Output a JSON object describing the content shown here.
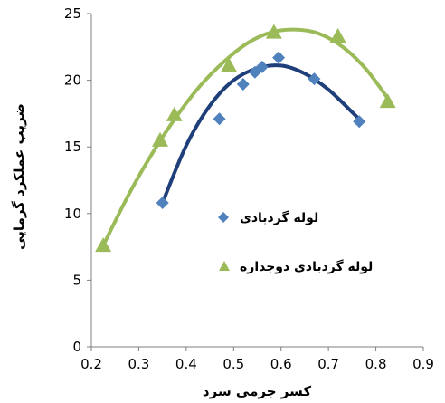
{
  "chart_data": {
    "type": "scatter",
    "xlabel": "کسر جرمی سرد",
    "ylabel": "ضریب عملکرد گرمایی",
    "xlim": [
      0.2,
      0.9
    ],
    "ylim": [
      0,
      25
    ],
    "x_ticks": [
      "0.2",
      "0.3",
      "0.4",
      "0.5",
      "0.6",
      "0.7",
      "0.8",
      "0.9"
    ],
    "y_ticks": [
      "0",
      "5",
      "10",
      "15",
      "20",
      "25"
    ],
    "grid": false,
    "legend_position": "center-right",
    "series": [
      {
        "name": "لوله گردبادی",
        "marker": "diamond",
        "color": "#4f81bd",
        "trend_color": "#1f3f7a",
        "points": [
          [
            0.35,
            10.8
          ],
          [
            0.47,
            17.1
          ],
          [
            0.52,
            19.7
          ],
          [
            0.545,
            20.6
          ],
          [
            0.56,
            21.0
          ],
          [
            0.595,
            21.7
          ],
          [
            0.67,
            20.1
          ],
          [
            0.765,
            16.9
          ]
        ],
        "trend": [
          [
            0.35,
            10.8
          ],
          [
            0.4,
            15.1
          ],
          [
            0.45,
            18.1
          ],
          [
            0.5,
            20.0
          ],
          [
            0.55,
            20.9
          ],
          [
            0.6,
            21.1
          ],
          [
            0.65,
            20.5
          ],
          [
            0.7,
            19.3
          ],
          [
            0.75,
            17.6
          ],
          [
            0.77,
            16.9
          ]
        ]
      },
      {
        "name": "لوله گردبادی دوجداره",
        "marker": "triangle",
        "color": "#9bbb59",
        "trend_color": "#9bbb59",
        "points": [
          [
            0.225,
            7.6
          ],
          [
            0.345,
            15.5
          ],
          [
            0.375,
            17.4
          ],
          [
            0.49,
            21.1
          ],
          [
            0.585,
            23.6
          ],
          [
            0.72,
            23.3
          ],
          [
            0.825,
            18.4
          ]
        ],
        "trend": [
          [
            0.225,
            7.6
          ],
          [
            0.28,
            11.5
          ],
          [
            0.33,
            14.6
          ],
          [
            0.38,
            17.3
          ],
          [
            0.43,
            19.6
          ],
          [
            0.48,
            21.4
          ],
          [
            0.53,
            22.8
          ],
          [
            0.58,
            23.6
          ],
          [
            0.63,
            23.8
          ],
          [
            0.68,
            23.5
          ],
          [
            0.73,
            22.5
          ],
          [
            0.78,
            20.8
          ],
          [
            0.83,
            18.4
          ]
        ]
      }
    ]
  }
}
